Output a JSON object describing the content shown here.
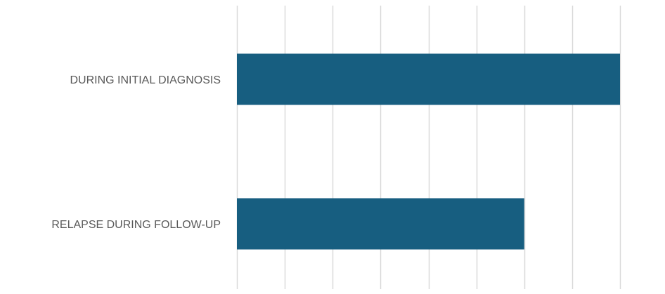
{
  "chart_data": {
    "type": "bar",
    "orientation": "horizontal",
    "categories": [
      "DURING INITIAL DIAGNOSIS",
      "RELAPSE DURING FOLLOW-UP"
    ],
    "values": [
      8,
      6
    ],
    "xlim": [
      0,
      8
    ],
    "major_gridlines": 8,
    "grid": true,
    "title": "",
    "xlabel": "",
    "ylabel": "",
    "legend": "none",
    "bar_color": "#175E80",
    "grid_color": "#D9D9D9"
  }
}
